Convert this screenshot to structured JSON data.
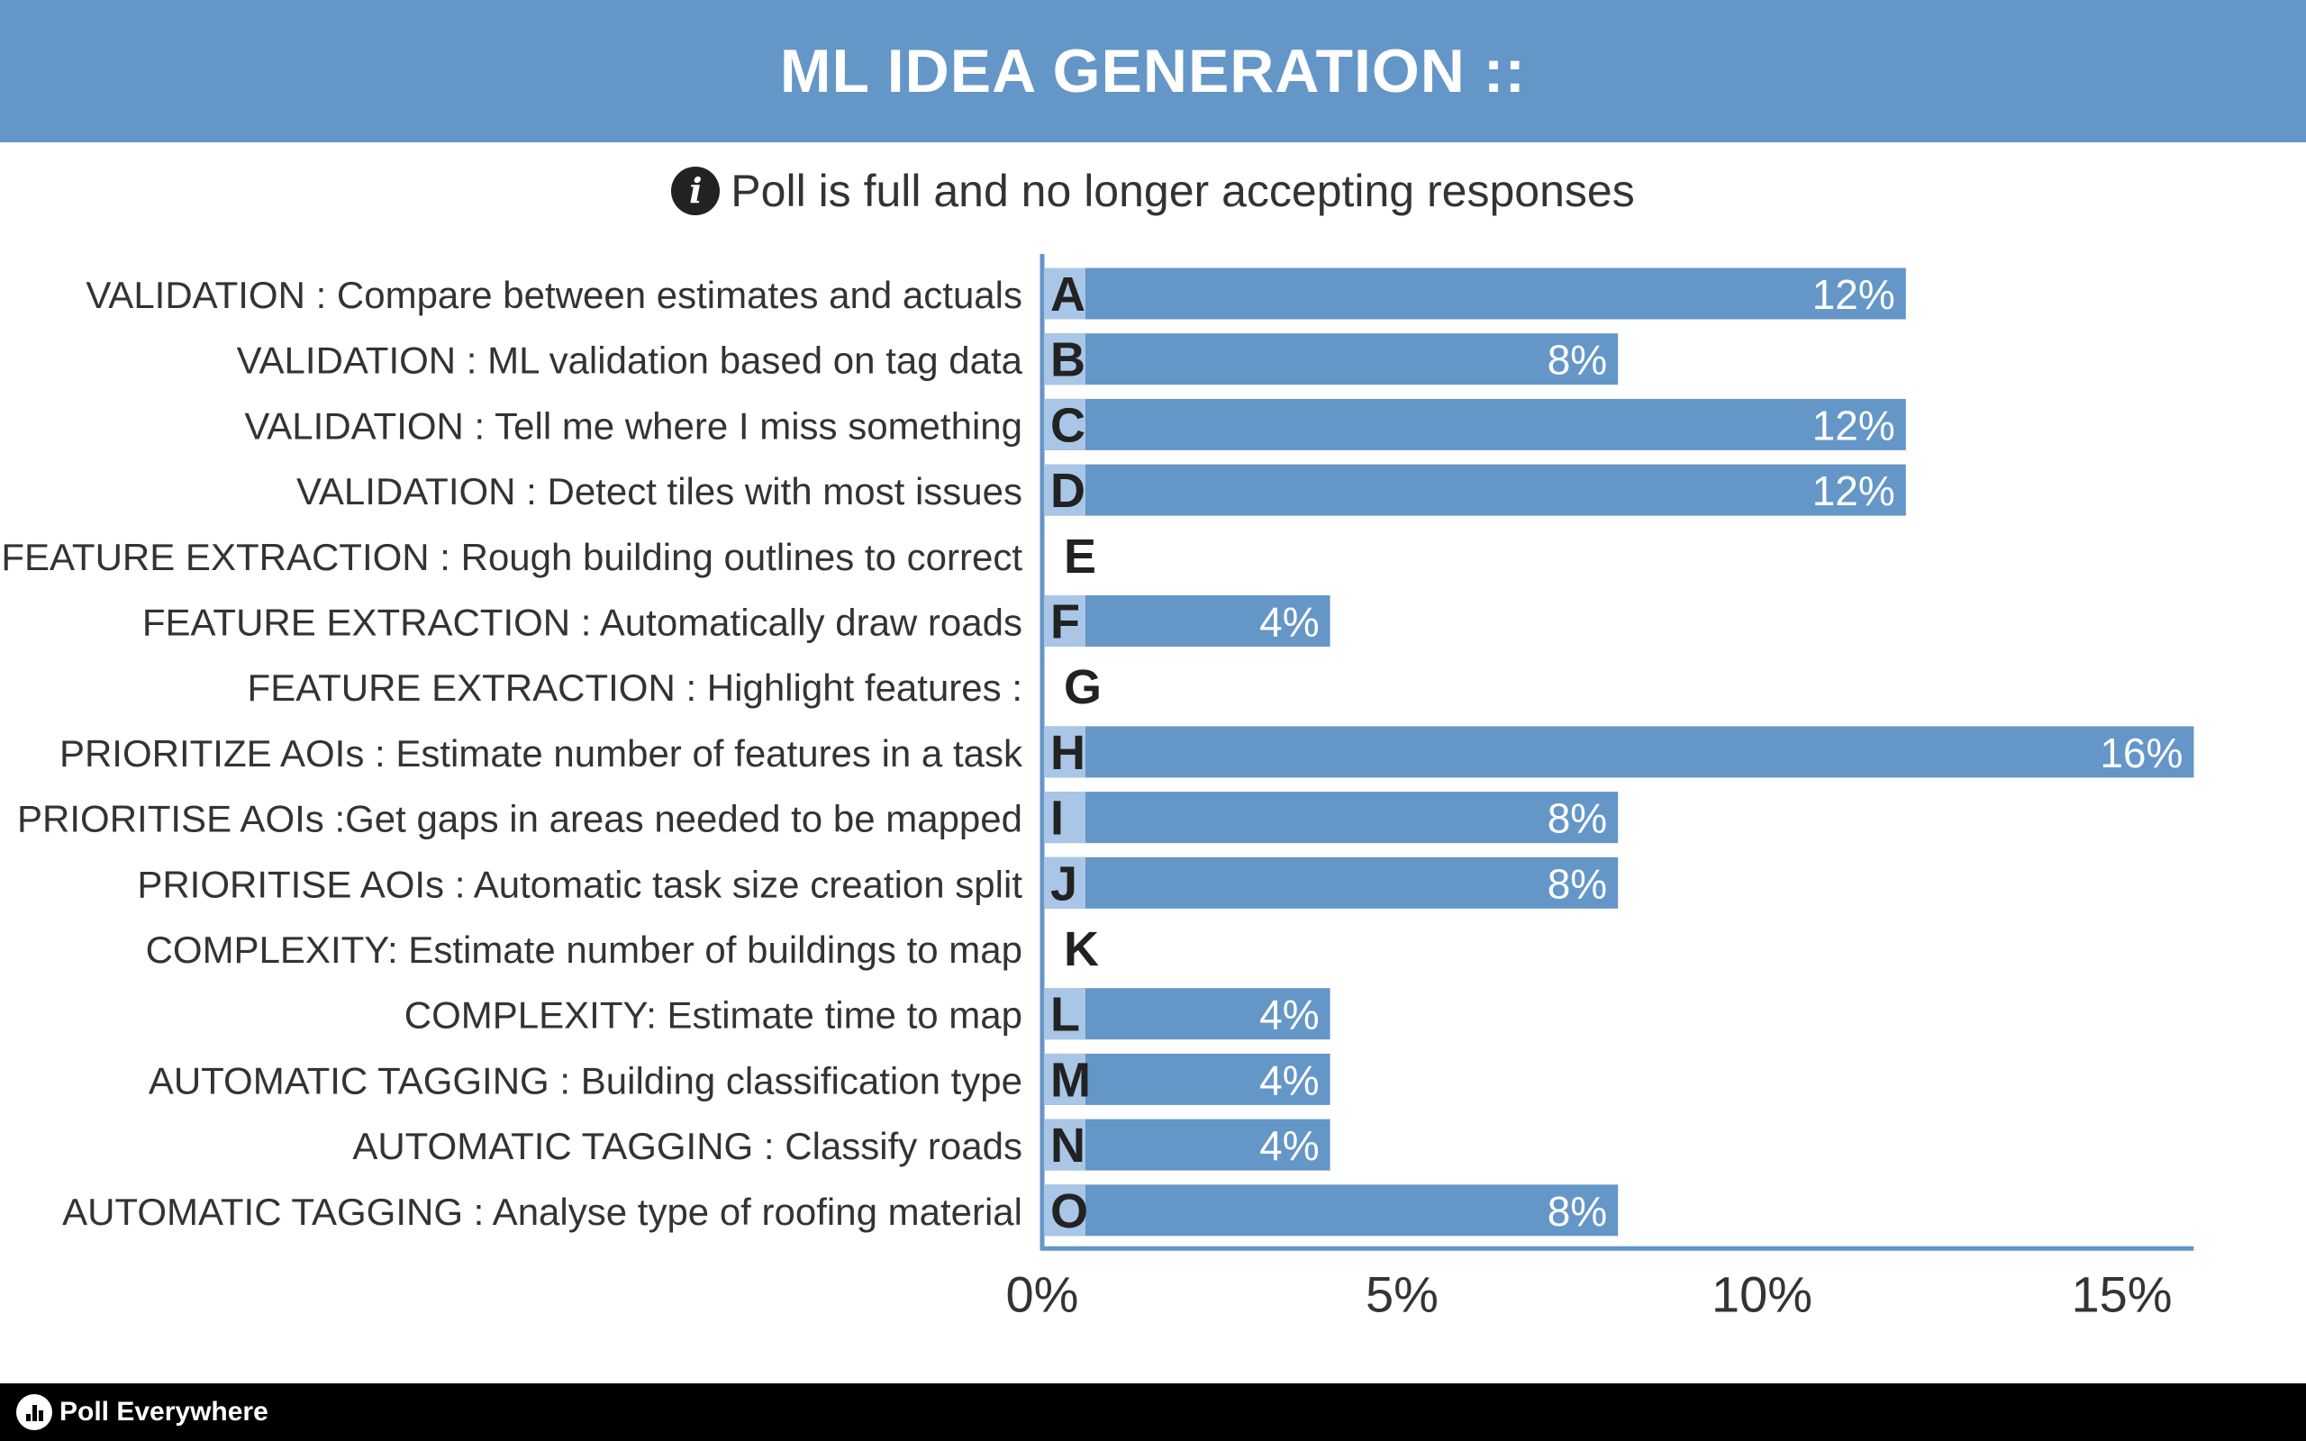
{
  "header": {
    "title": "ML IDEA GENERATION ::"
  },
  "notice": {
    "icon": "info-icon",
    "text": "Poll is full and no longer accepting responses"
  },
  "footer": {
    "logo": "poll-everywhere-logo-icon",
    "brand": "Poll Everywhere"
  },
  "colors": {
    "header": "#6496c8",
    "bar": "#6496c8",
    "letter_tab": "#a9c6e6",
    "axis": "#6496c8",
    "footer": "#000000"
  },
  "chart_data": {
    "type": "bar",
    "orientation": "horizontal",
    "title": "",
    "xlabel": "",
    "ylabel": "",
    "xlim": [
      0,
      16
    ],
    "x_ticks": [
      "0%",
      "5%",
      "10%",
      "15%"
    ],
    "x_tick_values": [
      0,
      5,
      10,
      15
    ],
    "letters": [
      "A",
      "B",
      "C",
      "D",
      "E",
      "F",
      "G",
      "H",
      "I",
      "J",
      "K",
      "L",
      "M",
      "N",
      "O"
    ],
    "categories": [
      "VALIDATION : Compare between estimates and actuals",
      "VALIDATION : ML validation based on tag data",
      "VALIDATION : Tell me where I miss something",
      "VALIDATION : Detect tiles with most issues",
      "FEATURE EXTRACTION : Rough building outlines to correct",
      "FEATURE EXTRACTION : Automatically draw roads",
      "FEATURE EXTRACTION : Highlight features :",
      "PRIORITIZE AOIs : Estimate number of features in a task",
      "PRIORITISE AOIs :Get gaps in areas needed to be mapped",
      "PRIORITISE AOIs : Automatic task size creation split",
      "COMPLEXITY: Estimate number of buildings to map",
      "COMPLEXITY: Estimate time to map",
      "AUTOMATIC TAGGING : Building classification type",
      "AUTOMATIC TAGGING : Classify roads",
      "AUTOMATIC TAGGING : Analyse type of roofing material"
    ],
    "values": [
      12,
      8,
      12,
      12,
      0,
      4,
      0,
      16,
      8,
      8,
      0,
      4,
      4,
      4,
      8
    ],
    "value_labels": [
      "12%",
      "8%",
      "12%",
      "12%",
      "",
      "4%",
      "",
      "16%",
      "8%",
      "8%",
      "",
      "4%",
      "4%",
      "4%",
      "8%"
    ],
    "grid": false,
    "legend": "none"
  }
}
